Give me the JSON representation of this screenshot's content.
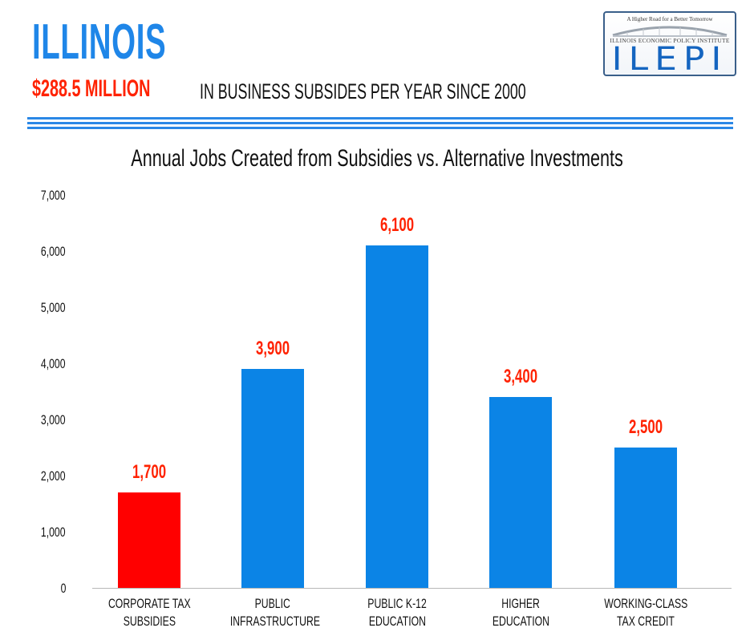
{
  "header": {
    "state": "ILLINOIS",
    "amount": "$288.5 MILLION",
    "subtitle": "IN BUSINESS SUBSIDES PER YEAR SINCE 2000"
  },
  "logo": {
    "tagline": "A Higher Road for a Better Tomorrow",
    "org_name": "ILLINOIS ECONOMIC POLICY INSTITUTE",
    "acronym": "ILEPI"
  },
  "colors": {
    "accent_blue": "#1f86e8",
    "bar_blue": "#0b84e6",
    "highlight_red": "#ff0000",
    "label_red": "#ff2200"
  },
  "chart_data": {
    "type": "bar",
    "title": "Annual Jobs Created from Subsidies vs. Alternative Investments",
    "xlabel": "",
    "ylabel": "",
    "categories": [
      "CORPORATE TAX SUBSIDIES",
      "PUBLIC INFRASTRUCTURE",
      "PUBLIC K-12 EDUCATION",
      "HIGHER EDUCATION",
      "WORKING-CLASS TAX CREDIT"
    ],
    "category_lines": [
      [
        "CORPORATE TAX",
        "SUBSIDIES"
      ],
      [
        "PUBLIC",
        "INFRASTRUCTURE"
      ],
      [
        "PUBLIC K-12",
        "EDUCATION"
      ],
      [
        "HIGHER",
        "EDUCATION"
      ],
      [
        "WORKING-CLASS",
        "TAX CREDIT"
      ]
    ],
    "values": [
      1700,
      3900,
      6100,
      3400,
      2500
    ],
    "value_labels": [
      "1,700",
      "3,900",
      "6,100",
      "3,400",
      "2,500"
    ],
    "bar_colors": [
      "#ff0000",
      "#0b84e6",
      "#0b84e6",
      "#0b84e6",
      "#0b84e6"
    ],
    "yticks": [
      "0",
      "1,000",
      "2,000",
      "3,000",
      "4,000",
      "5,000",
      "6,000",
      "7,000"
    ],
    "ylim": [
      0,
      7000
    ],
    "grid": false,
    "legend": null
  }
}
